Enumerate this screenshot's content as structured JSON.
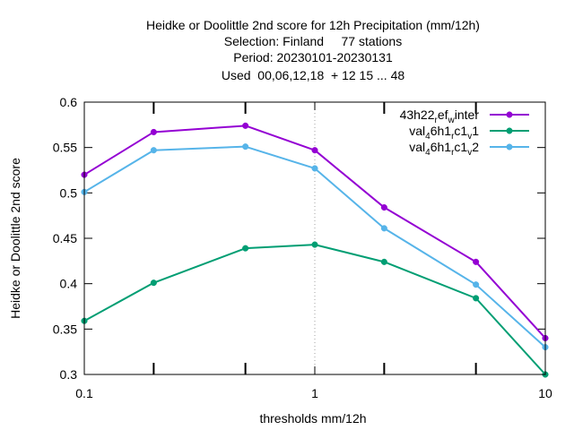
{
  "chart_data": {
    "type": "line",
    "title_lines": [
      "Heidke or Doolittle 2nd score  for 12h Precipitation (mm/12h)",
      "Selection: Finland     77 stations",
      "Period: 20230101-20230131",
      "Used  00,06,12,18  + 12 15 ... 48"
    ],
    "xlabel": "thresholds mm/12h",
    "ylabel": "Heidke or Doolittle 2nd score",
    "x_scale": "log",
    "xlim": [
      0.1,
      10
    ],
    "ylim": [
      0.3,
      0.6
    ],
    "x_ticks": [
      {
        "value": 0.1,
        "label": "0.1"
      },
      {
        "value": 1,
        "label": "1"
      },
      {
        "value": 10,
        "label": "10"
      }
    ],
    "x_minor_ticks": [
      0.2,
      0.5,
      2,
      5
    ],
    "y_ticks": [
      {
        "value": 0.3,
        "label": "0.3"
      },
      {
        "value": 0.35,
        "label": "0.35"
      },
      {
        "value": 0.4,
        "label": "0.4"
      },
      {
        "value": 0.45,
        "label": "0.45"
      },
      {
        "value": 0.5,
        "label": "0.5"
      },
      {
        "value": 0.55,
        "label": "0.55"
      },
      {
        "value": 0.6,
        "label": "0.6"
      }
    ],
    "x": [
      0.1,
      0.2,
      0.5,
      1,
      2,
      5,
      10
    ],
    "legend_position": "top-right",
    "series": [
      {
        "name": "43h22_ref_winter",
        "legend": {
          "parts": [
            {
              "t": "43h22"
            },
            {
              "t": "r",
              "sub": true
            },
            {
              "t": "ef"
            },
            {
              "t": "w",
              "sub": true
            },
            {
              "t": "inter"
            }
          ]
        },
        "color": "#9400d3",
        "values": [
          0.52,
          0.567,
          0.574,
          0.547,
          0.484,
          0.424,
          0.34
        ]
      },
      {
        "name": "val_46h1_rc1_v1",
        "legend": {
          "parts": [
            {
              "t": "val"
            },
            {
              "t": "4",
              "sub": true
            },
            {
              "t": "6h1"
            },
            {
              "t": "r",
              "sub": true
            },
            {
              "t": "c1"
            },
            {
              "t": "v",
              "sub": true
            },
            {
              "t": "1"
            }
          ]
        },
        "color": "#009e73",
        "values": [
          0.359,
          0.401,
          0.439,
          0.443,
          0.424,
          0.384,
          0.3
        ]
      },
      {
        "name": "val_46h1_rc1_v2",
        "legend": {
          "parts": [
            {
              "t": "val"
            },
            {
              "t": "4",
              "sub": true
            },
            {
              "t": "6h1"
            },
            {
              "t": "r",
              "sub": true
            },
            {
              "t": "c1"
            },
            {
              "t": "v",
              "sub": true
            },
            {
              "t": "2"
            }
          ]
        },
        "color": "#56b4e9",
        "values": [
          0.501,
          0.547,
          0.551,
          0.527,
          0.461,
          0.399,
          0.33
        ]
      }
    ]
  }
}
